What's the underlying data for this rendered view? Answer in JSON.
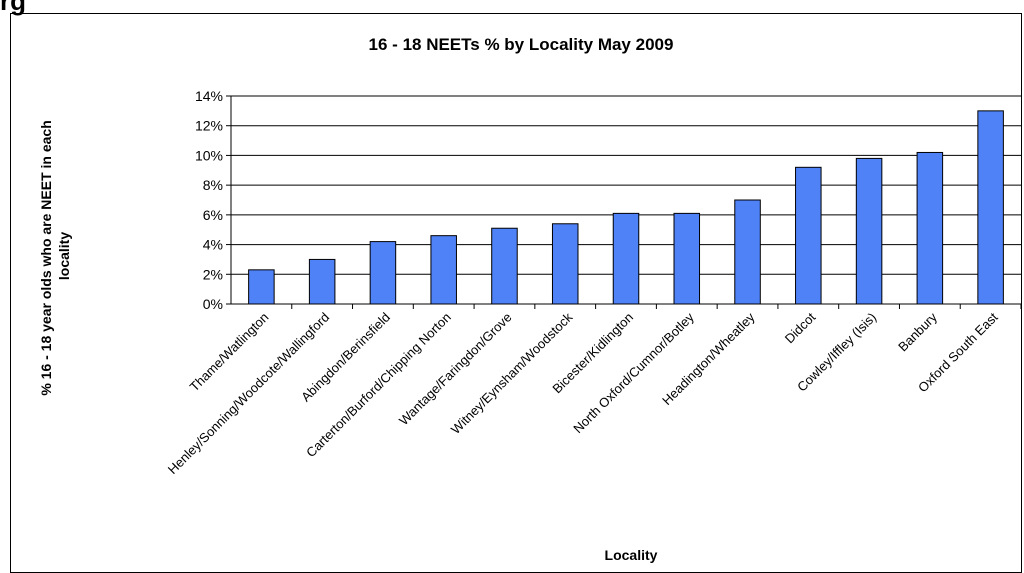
{
  "page": {
    "top_fragment": "rg"
  },
  "chart_data": {
    "type": "bar",
    "title": "16 - 18 NEETs % by Locality May 2009",
    "xlabel": "Locality",
    "ylabel": "% 16 - 18 year olds who are NEET in each locality",
    "ylabel_lines": [
      "% 16 - 18 year olds who are NEET in each",
      "locality"
    ],
    "categories": [
      "Thame/Watlington",
      "Henley/Sonning/Woodcote/Wallingford",
      "Abingdon/Berinsfield",
      "Carterton/Burford/Chipping Norton",
      "Wantage/Faringdon/Grove",
      "Witney/Eynsham/Woodstock",
      "Bicester/Kidlington",
      "North Oxford/Cumnor/Botley",
      "Headington/Wheatley",
      "Didcot",
      "Cowley/Iffley (Isis)",
      "Banbury",
      "Oxford South East"
    ],
    "values": [
      2.3,
      3.0,
      4.2,
      4.6,
      5.1,
      5.4,
      6.1,
      6.1,
      7.0,
      9.2,
      9.8,
      10.2,
      13.0
    ],
    "ylim": [
      0,
      14
    ],
    "ytick_values": [
      0,
      2,
      4,
      6,
      8,
      10,
      12,
      14
    ],
    "ytick_labels": [
      "0%",
      "2%",
      "4%",
      "6%",
      "8%",
      "10%",
      "12%",
      "14%"
    ],
    "grid": true,
    "bar_color": "#4f81f7",
    "bar_edge_color": "#000000"
  }
}
